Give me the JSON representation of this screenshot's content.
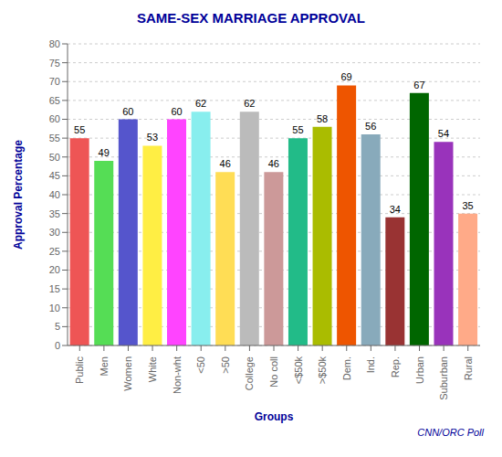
{
  "chart_data": {
    "type": "bar",
    "title": "SAME-SEX MARRIAGE APPROVAL",
    "xlabel": "Groups",
    "ylabel": "Approval Percentage",
    "annotation": "CNN/ORC Poll",
    "categories": [
      "Public",
      "Men",
      "Women",
      "White",
      "Non-wht",
      "<50",
      ">50",
      "College",
      "No coll",
      "<$50k",
      ">$50k",
      "Dem.",
      "Ind.",
      "Rep.",
      "Urban",
      "Suburban",
      "Rural"
    ],
    "values": [
      55,
      49,
      60,
      53,
      60,
      62,
      46,
      62,
      46,
      55,
      58,
      69,
      56,
      34,
      67,
      54,
      35
    ],
    "colors": [
      "#EE5555",
      "#55DD55",
      "#5555CC",
      "#FFEE44",
      "#FF44FF",
      "#88EEEE",
      "#FFDD55",
      "#BBBBBB",
      "#CC9999",
      "#22BB88",
      "#AABC00",
      "#EE5500",
      "#88AABB",
      "#993333",
      "#006600",
      "#9933BB",
      "#FFAA88"
    ],
    "ylim": [
      0,
      80
    ],
    "yticks": [
      0,
      5,
      10,
      15,
      20,
      25,
      30,
      35,
      40,
      45,
      50,
      55,
      60,
      65,
      70,
      75,
      80
    ],
    "grid": true,
    "data_labels": true
  }
}
